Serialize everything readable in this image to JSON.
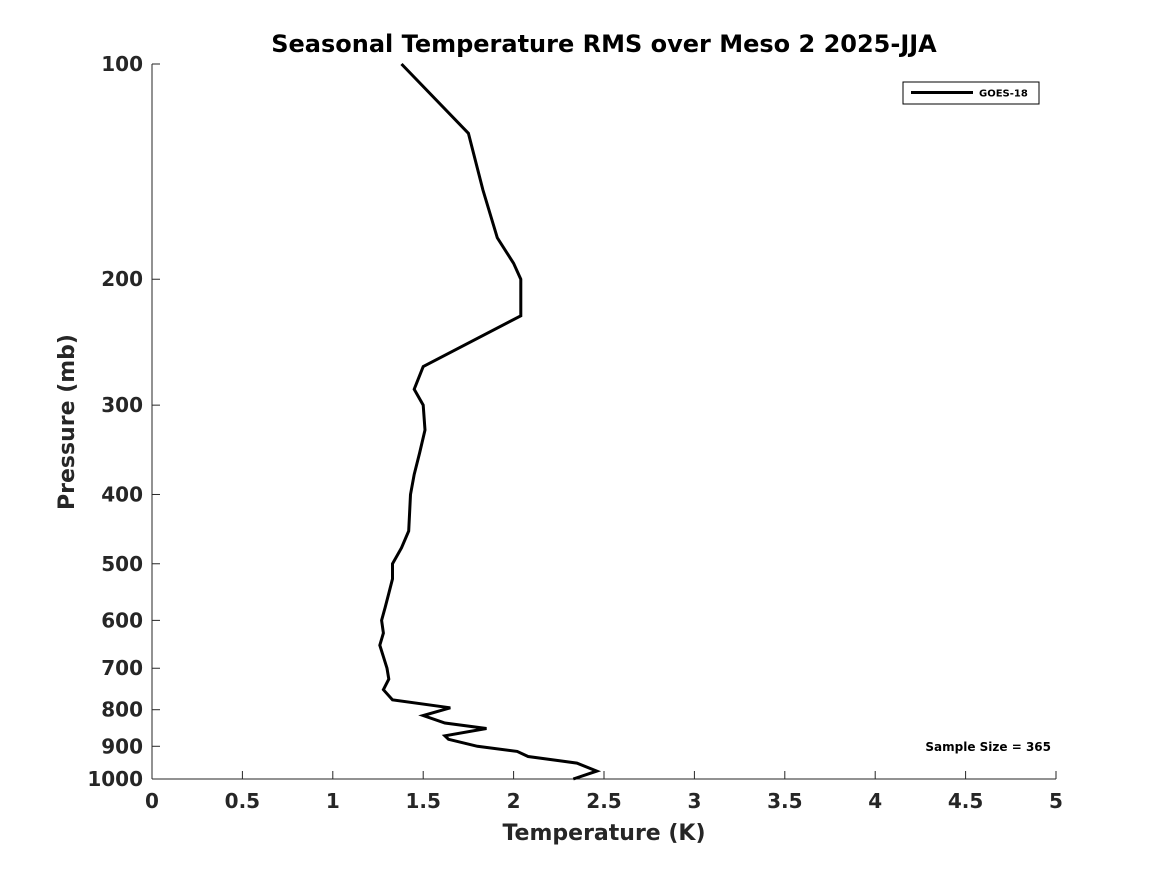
{
  "chart_data": {
    "type": "line",
    "title": "Seasonal Temperature RMS over Meso 2  2025-JJA",
    "xlabel": "Temperature (K)",
    "ylabel": "Pressure (mb)",
    "xlim": [
      0,
      5
    ],
    "ylim": [
      100,
      1000
    ],
    "yscale": "log",
    "yreversed": true,
    "grid": false,
    "legend_position": "top-right",
    "x_ticks": [
      0,
      0.5,
      1,
      1.5,
      2,
      2.5,
      3,
      3.5,
      4,
      4.5,
      5
    ],
    "x_tick_labels": [
      "0",
      "0.5",
      "1",
      "1.5",
      "2",
      "2.5",
      "3",
      "3.5",
      "4",
      "4.5",
      "5"
    ],
    "y_ticks": [
      100,
      200,
      300,
      400,
      500,
      600,
      700,
      800,
      900,
      1000
    ],
    "y_tick_labels": [
      "100",
      "200",
      "300",
      "400",
      "500",
      "600",
      "700",
      "800",
      "900",
      "1000"
    ],
    "annotation": "Sample Size = 365",
    "series": [
      {
        "name": "GOES-18",
        "color": "#000000",
        "points": [
          {
            "x": 1.38,
            "p": 100
          },
          {
            "x": 1.75,
            "p": 125
          },
          {
            "x": 1.83,
            "p": 150
          },
          {
            "x": 1.91,
            "p": 175
          },
          {
            "x": 2.0,
            "p": 190
          },
          {
            "x": 2.04,
            "p": 200
          },
          {
            "x": 2.04,
            "p": 225
          },
          {
            "x": 1.5,
            "p": 265
          },
          {
            "x": 1.45,
            "p": 285
          },
          {
            "x": 1.5,
            "p": 300
          },
          {
            "x": 1.51,
            "p": 325
          },
          {
            "x": 1.48,
            "p": 350
          },
          {
            "x": 1.45,
            "p": 375
          },
          {
            "x": 1.43,
            "p": 400
          },
          {
            "x": 1.42,
            "p": 450
          },
          {
            "x": 1.38,
            "p": 475
          },
          {
            "x": 1.33,
            "p": 500
          },
          {
            "x": 1.33,
            "p": 525
          },
          {
            "x": 1.31,
            "p": 550
          },
          {
            "x": 1.29,
            "p": 575
          },
          {
            "x": 1.27,
            "p": 600
          },
          {
            "x": 1.28,
            "p": 625
          },
          {
            "x": 1.26,
            "p": 650
          },
          {
            "x": 1.3,
            "p": 700
          },
          {
            "x": 1.31,
            "p": 725
          },
          {
            "x": 1.28,
            "p": 750
          },
          {
            "x": 1.33,
            "p": 775
          },
          {
            "x": 1.65,
            "p": 795
          },
          {
            "x": 1.5,
            "p": 815
          },
          {
            "x": 1.62,
            "p": 835
          },
          {
            "x": 1.85,
            "p": 850
          },
          {
            "x": 1.62,
            "p": 870
          },
          {
            "x": 1.64,
            "p": 880
          },
          {
            "x": 1.8,
            "p": 900
          },
          {
            "x": 2.02,
            "p": 915
          },
          {
            "x": 2.08,
            "p": 930
          },
          {
            "x": 2.35,
            "p": 950
          },
          {
            "x": 2.46,
            "p": 975
          },
          {
            "x": 2.33,
            "p": 1000
          }
        ]
      }
    ]
  }
}
